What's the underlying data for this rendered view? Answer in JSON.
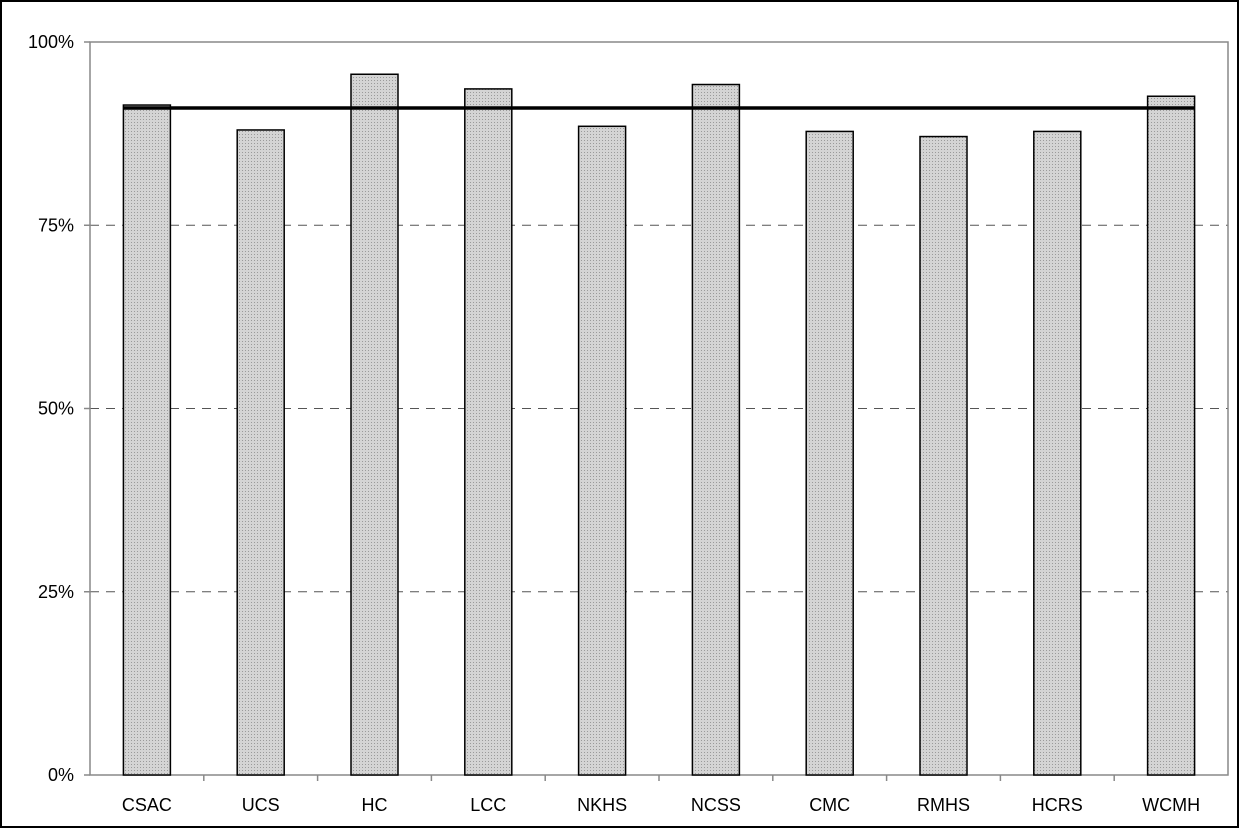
{
  "chart_data": {
    "type": "bar",
    "title": "",
    "xlabel": "",
    "ylabel": "",
    "categories": [
      "CSAC",
      "UCS",
      "HC",
      "LCC",
      "NKHS",
      "NCSS",
      "CMC",
      "RMHS",
      "HCRS",
      "WCMH"
    ],
    "values": [
      91.4,
      88.0,
      95.6,
      93.6,
      88.5,
      94.2,
      87.8,
      87.1,
      87.8,
      92.6
    ],
    "value_format": "percent",
    "ylim": [
      0,
      100
    ],
    "yticks": [
      0,
      25,
      50,
      75,
      100
    ],
    "ytick_labels": [
      "0%",
      "25%",
      "50%",
      "75%",
      "100%"
    ],
    "reference_line": {
      "value": 91.0
    },
    "grid": "horizontal dashed",
    "legend": "none",
    "colors": {
      "bar_fill": "#d4d4d4",
      "bar_pattern_dot": "#9a9a9a",
      "bar_stroke": "#000000",
      "grid": "#555555",
      "axes": "#888888",
      "reference_line": "#000000"
    }
  }
}
